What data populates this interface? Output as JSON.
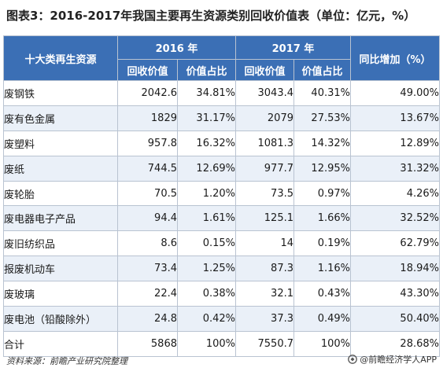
{
  "title": "图表3：2016-2017年我国主要再生资源类别回收价值表（单位：亿元，%）",
  "header": {
    "category_label": "十大类再生资源",
    "year_2016": "2016 年",
    "year_2017": "2017 年",
    "growth_label": "同比增加（%）",
    "sub_value": "回收价值",
    "sub_share": "价值占比"
  },
  "rows": [
    {
      "name": "废钢铁",
      "v2016": "2042.6",
      "s2016": "34.81%",
      "v2017": "3043.4",
      "s2017": "40.31%",
      "growth": "49.00%"
    },
    {
      "name": "废有色金属",
      "v2016": "1829",
      "s2016": "31.17%",
      "v2017": "2079",
      "s2017": "27.53%",
      "growth": "13.67%"
    },
    {
      "name": "废塑料",
      "v2016": "957.8",
      "s2016": "16.32%",
      "v2017": "1081.3",
      "s2017": "14.32%",
      "growth": "12.89%"
    },
    {
      "name": "废纸",
      "v2016": "744.5",
      "s2016": "12.69%",
      "v2017": "977.7",
      "s2017": "12.95%",
      "growth": "31.32%"
    },
    {
      "name": "废轮胎",
      "v2016": "70.5",
      "s2016": "1.20%",
      "v2017": "73.5",
      "s2017": "0.97%",
      "growth": "4.26%"
    },
    {
      "name": "废电器电子产品",
      "v2016": "94.4",
      "s2016": "1.61%",
      "v2017": "125.1",
      "s2017": "1.66%",
      "growth": "32.52%"
    },
    {
      "name": "废旧纺织品",
      "v2016": "8.6",
      "s2016": "0.15%",
      "v2017": "14",
      "s2017": "0.19%",
      "growth": "62.79%"
    },
    {
      "name": "报废机动车",
      "v2016": "73.4",
      "s2016": "1.25%",
      "v2017": "87.3",
      "s2017": "1.16%",
      "growth": "18.94%"
    },
    {
      "name": "废玻璃",
      "v2016": "22.4",
      "s2016": "0.38%",
      "v2017": "32.1",
      "s2017": "0.43%",
      "growth": "43.30%"
    },
    {
      "name": "废电池（铅酸除外）",
      "v2016": "24.8",
      "s2016": "0.42%",
      "v2017": "37.3",
      "s2017": "0.49%",
      "growth": "50.40%"
    },
    {
      "name": "合计",
      "v2016": "5868",
      "s2016": "100%",
      "v2017": "7550.7",
      "s2017": "100%",
      "growth": "28.68%"
    }
  ],
  "footer": {
    "source": "资料来源：前瞻产业研究院整理",
    "brand": "@前瞻经济学人APP",
    "logo_icon": "qianzhan-logo-icon"
  },
  "colors": {
    "header_bg": "#3b6fb5",
    "stripe": "#eaf0f8",
    "border": "#b9c3d1"
  }
}
